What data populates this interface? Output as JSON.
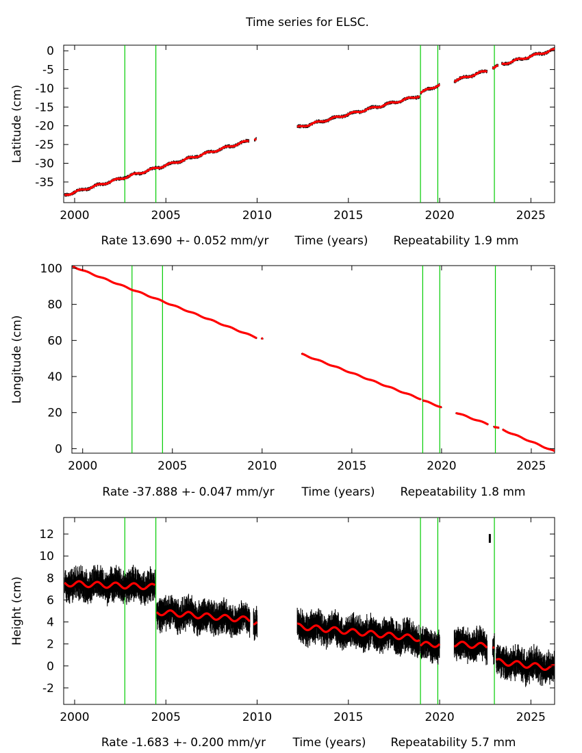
{
  "figure_title": "Time series for ELSC.",
  "chart_data": [
    {
      "type": "scatter",
      "title": "Time series for ELSC.",
      "ylabel": "Latitude (cm)",
      "xlabel": "Time (years)",
      "rate_text": "Rate 13.690 +- 0.052 mm/yr",
      "repeatability_text": "Repeatability 1.9 mm",
      "xlim": [
        1999.4,
        2026.3
      ],
      "ylim": [
        -40.5,
        1.5
      ],
      "xticks": [
        2000,
        2005,
        2010,
        2015,
        2020,
        2025
      ],
      "yticks": [
        0,
        -5,
        -10,
        -15,
        -20,
        -25,
        -30,
        -35
      ],
      "event_lines": [
        2002.75,
        2004.45,
        2018.95,
        2019.9,
        2023.0
      ],
      "segments": [
        {
          "start": 1999.45,
          "end": 2009.55,
          "y_start": -38.5,
          "y_end": -24.0
        },
        {
          "start": 2009.85,
          "end": 2009.95,
          "y_start": -23.6,
          "y_end": -23.4
        },
        {
          "start": 2012.2,
          "end": 2018.9,
          "y_start": -20.5,
          "y_end": -12.0
        },
        {
          "start": 2018.95,
          "end": 2020.0,
          "y_start": -11.2,
          "y_end": -9.0
        },
        {
          "start": 2020.8,
          "end": 2022.6,
          "y_start": -8.0,
          "y_end": -5.3
        },
        {
          "start": 2022.9,
          "end": 2023.2,
          "y_start": -4.6,
          "y_end": -4.1
        },
        {
          "start": 2023.4,
          "end": 2026.3,
          "y_start": -3.6,
          "y_end": 0.3
        }
      ],
      "noise_cm": 0.35,
      "wobble_cm": 0.25,
      "spike": null
    },
    {
      "type": "scatter",
      "ylabel": "Longitude (cm)",
      "xlabel": "Time (years)",
      "rate_text": "Rate -37.888 +- 0.047 mm/yr",
      "repeatability_text": "Repeatability 1.8 mm",
      "xlim": [
        1999.4,
        2026.3
      ],
      "ylim": [
        -2.5,
        101.5
      ],
      "xticks": [
        2000,
        2005,
        2010,
        2015,
        2020,
        2025
      ],
      "yticks": [
        0,
        20,
        40,
        60,
        80,
        100
      ],
      "event_lines": [
        2002.75,
        2004.45,
        2018.95,
        2019.9,
        2023.0
      ],
      "segments": [
        {
          "start": 1999.45,
          "end": 2009.7,
          "y_start": 101.0,
          "y_end": 61.5
        },
        {
          "start": 2009.95,
          "end": 2010.05,
          "y_start": 61.2,
          "y_end": 61.0
        },
        {
          "start": 2012.2,
          "end": 2018.85,
          "y_start": 52.5,
          "y_end": 27.5
        },
        {
          "start": 2018.95,
          "end": 2020.0,
          "y_start": 26.8,
          "y_end": 23.0
        },
        {
          "start": 2020.8,
          "end": 2022.6,
          "y_start": 20.0,
          "y_end": 13.5
        },
        {
          "start": 2022.9,
          "end": 2023.2,
          "y_start": 12.2,
          "y_end": 11.3
        },
        {
          "start": 2023.4,
          "end": 2026.3,
          "y_start": 10.5,
          "y_end": -1.5
        }
      ],
      "noise_cm": 0.35,
      "wobble_cm": 0.25,
      "spike": null
    },
    {
      "type": "scatter",
      "ylabel": "Height (cm)",
      "xlabel": "Time (years)",
      "rate_text": "Rate -1.683 +- 0.200 mm/yr",
      "repeatability_text": "Repeatability 5.7 mm",
      "xlim": [
        1999.4,
        2026.3
      ],
      "ylim": [
        -3.5,
        13.5
      ],
      "xticks": [
        2000,
        2005,
        2010,
        2015,
        2020,
        2025
      ],
      "yticks": [
        12,
        10,
        8,
        6,
        4,
        2,
        0,
        -2
      ],
      "event_lines": [
        2002.75,
        2004.45,
        2018.95,
        2019.9,
        2023.0
      ],
      "segments": [
        {
          "start": 1999.45,
          "end": 2004.4,
          "y_start": 7.5,
          "y_end": 7.2
        },
        {
          "start": 2004.5,
          "end": 2009.6,
          "y_start": 4.9,
          "y_end": 4.2
        },
        {
          "start": 2009.8,
          "end": 2010.0,
          "y_start": 4.0,
          "y_end": 4.0
        },
        {
          "start": 2012.2,
          "end": 2018.9,
          "y_start": 3.6,
          "y_end": 2.5
        },
        {
          "start": 2018.95,
          "end": 2020.0,
          "y_start": 1.9,
          "y_end": 2.0
        },
        {
          "start": 2020.8,
          "end": 2022.6,
          "y_start": 2.0,
          "y_end": 1.8
        },
        {
          "start": 2022.9,
          "end": 2023.0,
          "y_start": 1.8,
          "y_end": 1.7
        },
        {
          "start": 2023.1,
          "end": 2026.3,
          "y_start": 0.4,
          "y_end": -0.2
        }
      ],
      "noise_cm": 1.0,
      "wobble_cm": 0.25,
      "spike": {
        "x": 2022.75,
        "y_low": 11.2,
        "y_high": 12.0
      }
    }
  ]
}
